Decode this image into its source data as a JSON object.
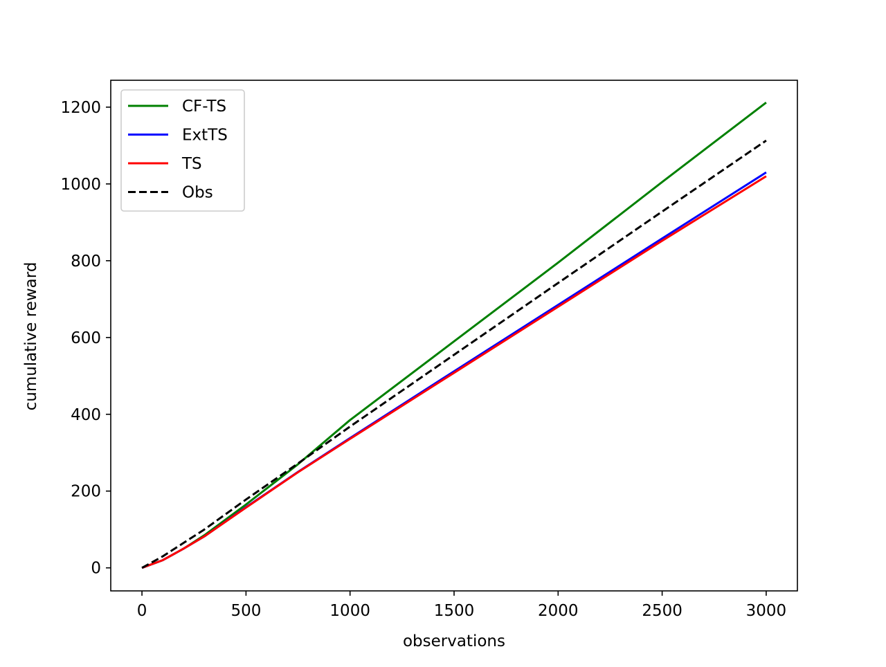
{
  "chart_data": {
    "type": "line",
    "title": "",
    "xlabel": "observations",
    "ylabel": "cumulative reward",
    "xlim": [
      -150,
      3150
    ],
    "ylim": [
      -60,
      1270
    ],
    "xticks": [
      0,
      500,
      1000,
      1500,
      2000,
      2500,
      3000
    ],
    "xtick_labels": [
      "0",
      "500",
      "1000",
      "1500",
      "2000",
      "2500",
      "3000"
    ],
    "yticks": [
      0,
      200,
      400,
      600,
      800,
      1000,
      1200
    ],
    "ytick_labels": [
      "0",
      "200",
      "400",
      "600",
      "800",
      "1000",
      "1200"
    ],
    "grid": false,
    "legend_position": "top-left",
    "series": [
      {
        "name": "CF-TS",
        "color": "#008000",
        "dash": "solid",
        "x": [
          0,
          100,
          200,
          300,
          500,
          750,
          1000,
          1500,
          2000,
          2500,
          3000
        ],
        "y": [
          0,
          20,
          50,
          85,
          165,
          270,
          385,
          590,
          795,
          1005,
          1212
        ]
      },
      {
        "name": "ExtTS",
        "color": "#0000ff",
        "dash": "solid",
        "x": [
          0,
          100,
          200,
          300,
          500,
          750,
          1000,
          1500,
          2000,
          2500,
          3000
        ],
        "y": [
          0,
          20,
          50,
          82,
          158,
          250,
          338,
          512,
          685,
          858,
          1030
        ]
      },
      {
        "name": "TS",
        "color": "#ff0000",
        "dash": "solid",
        "x": [
          0,
          100,
          200,
          300,
          500,
          750,
          1000,
          1500,
          2000,
          2500,
          3000
        ],
        "y": [
          0,
          20,
          50,
          82,
          157,
          249,
          336,
          508,
          680,
          852,
          1020
        ]
      },
      {
        "name": "Obs",
        "color": "#000000",
        "dash": "dashed",
        "x": [
          0,
          100,
          200,
          300,
          500,
          750,
          1000,
          1500,
          2000,
          2500,
          3000
        ],
        "y": [
          0,
          30,
          65,
          100,
          178,
          272,
          368,
          555,
          742,
          928,
          1113
        ]
      }
    ]
  }
}
